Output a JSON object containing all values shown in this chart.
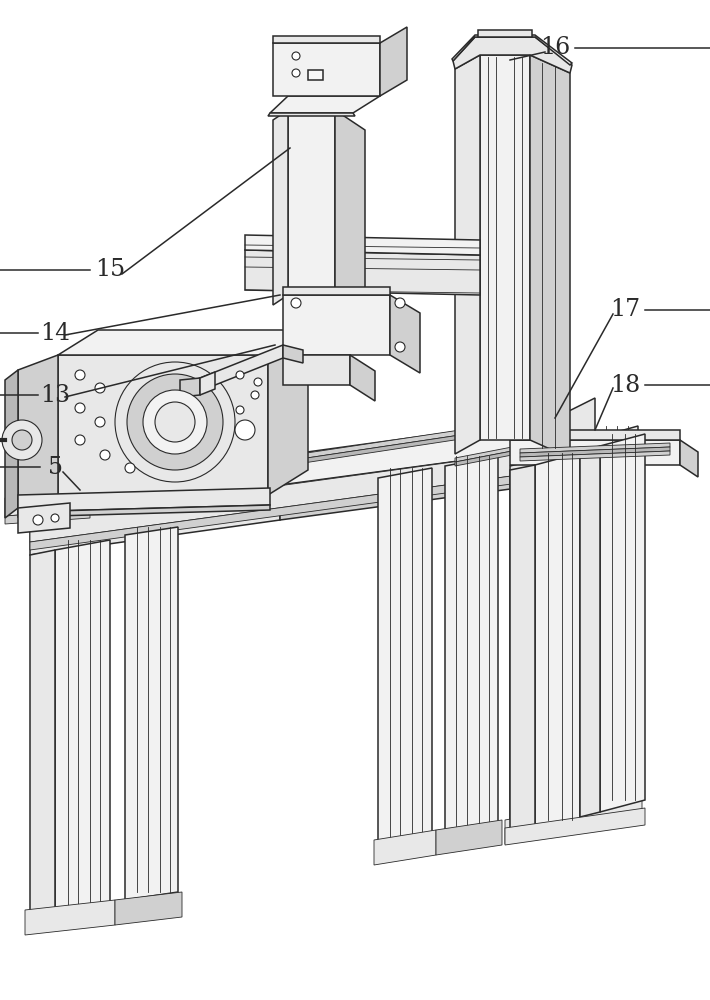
{
  "background": "#ffffff",
  "line_color": "#2a2a2a",
  "fill_white": "#f9f9f9",
  "fill_light": "#e8e8e8",
  "fill_mid": "#d0d0d0",
  "fill_dark": "#b8b8b8",
  "fill_vlight": "#f2f2f2",
  "label_fontsize": 17,
  "lw_main": 1.1,
  "lw_thin": 0.6
}
